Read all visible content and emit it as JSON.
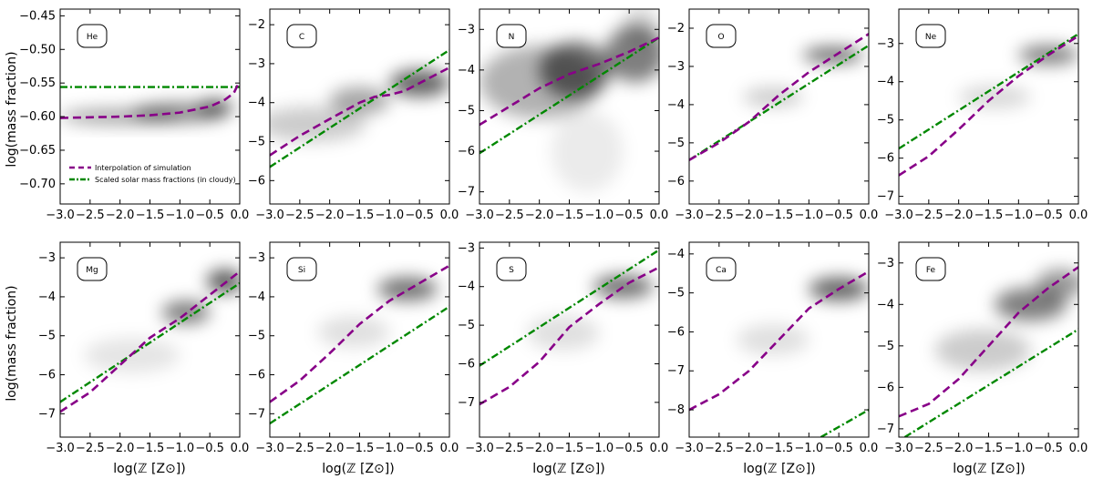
{
  "legend": {
    "interp_label": "Interpolation of simulation",
    "solar_label": "Scaled solar mass fractions (in cloudy)",
    "placement": "lower-left (He panel)"
  },
  "colors": {
    "interp": "#880088",
    "solar": "#008800",
    "density": "#000000"
  },
  "axes_text": {
    "ylabel": "log(mass fraction)",
    "xlabel": "log(ℤ [Z⊙])"
  },
  "chart_data": [
    {
      "type": "line",
      "element": "He",
      "xlim": [
        -3.0,
        0.0
      ],
      "ylim": [
        -0.73,
        -0.44
      ],
      "xticks": [
        -3.0,
        -2.5,
        -2.0,
        -1.5,
        -1.0,
        -0.5,
        0.0
      ],
      "yticks": [
        -0.7,
        -0.65,
        -0.6,
        -0.55,
        -0.5,
        -0.45
      ],
      "yticklabels": [
        "−0.70",
        "−0.65",
        "−0.60",
        "−0.55",
        "−0.50",
        "−0.45"
      ],
      "interp": [
        [
          -3.0,
          -0.602
        ],
        [
          -2.5,
          -0.601
        ],
        [
          -2.0,
          -0.6
        ],
        [
          -1.5,
          -0.598
        ],
        [
          -1.0,
          -0.594
        ],
        [
          -0.5,
          -0.585
        ],
        [
          -0.25,
          -0.575
        ],
        [
          -0.1,
          -0.565
        ],
        [
          0.0,
          -0.547
        ]
      ],
      "solar": [
        [
          -3.0,
          -0.556
        ],
        [
          0.0,
          -0.556
        ]
      ],
      "density": [
        [
          -2.0,
          -0.6,
          1.0,
          0.012,
          0.35
        ],
        [
          -1.0,
          -0.594,
          0.8,
          0.015,
          0.45
        ],
        [
          -0.4,
          -0.586,
          0.3,
          0.012,
          0.55
        ]
      ]
    },
    {
      "type": "line",
      "element": "C",
      "xlim": [
        -3.0,
        0.0
      ],
      "ylim": [
        -6.6,
        -1.6
      ],
      "xticks": [
        -3.0,
        -2.5,
        -2.0,
        -1.5,
        -1.0,
        -0.5,
        0.0
      ],
      "yticks": [
        -6,
        -5,
        -4,
        -3,
        -2
      ],
      "yticklabels": [
        "−6",
        "−5",
        "−4",
        "−3",
        "−2"
      ],
      "interp": [
        [
          -3.0,
          -5.35
        ],
        [
          -2.5,
          -4.85
        ],
        [
          -2.0,
          -4.42
        ],
        [
          -1.5,
          -4.0
        ],
        [
          -1.25,
          -3.85
        ],
        [
          -1.0,
          -3.8
        ],
        [
          -0.75,
          -3.7
        ],
        [
          -0.5,
          -3.5
        ],
        [
          -0.25,
          -3.3
        ],
        [
          0.0,
          -3.1
        ]
      ],
      "solar": [
        [
          -3.0,
          -5.65
        ],
        [
          0.0,
          -2.65
        ]
      ],
      "density": [
        [
          -2.3,
          -4.55,
          0.9,
          0.45,
          0.2
        ],
        [
          -1.5,
          -3.95,
          0.5,
          0.35,
          0.35
        ],
        [
          -0.5,
          -3.5,
          0.5,
          0.35,
          0.6
        ]
      ]
    },
    {
      "type": "line",
      "element": "N",
      "xlim": [
        -3.0,
        0.0
      ],
      "ylim": [
        -7.3,
        -2.5
      ],
      "xticks": [
        -3.0,
        -2.5,
        -2.0,
        -1.5,
        -1.0,
        -0.5,
        0.0
      ],
      "yticks": [
        -7,
        -6,
        -5,
        -4,
        -3
      ],
      "yticklabels": [
        "−7",
        "−6",
        "−5",
        "−4",
        "−3"
      ],
      "interp": [
        [
          -3.0,
          -5.35
        ],
        [
          -2.5,
          -4.9
        ],
        [
          -2.0,
          -4.45
        ],
        [
          -1.5,
          -4.1
        ],
        [
          -1.0,
          -3.85
        ],
        [
          -0.5,
          -3.55
        ],
        [
          0.0,
          -3.2
        ]
      ],
      "solar": [
        [
          -3.0,
          -6.05
        ],
        [
          0.0,
          -3.2
        ]
      ],
      "density": [
        [
          -2.0,
          -4.3,
          1.0,
          0.9,
          0.3
        ],
        [
          -1.4,
          -4.0,
          0.6,
          0.7,
          0.55
        ],
        [
          -0.4,
          -3.6,
          0.5,
          0.7,
          0.5
        ],
        [
          -1.2,
          -6.0,
          0.6,
          1.0,
          0.08
        ],
        [
          -0.3,
          -2.9,
          0.3,
          0.5,
          0.15
        ]
      ]
    },
    {
      "type": "line",
      "element": "O",
      "xlim": [
        -3.0,
        0.0
      ],
      "ylim": [
        -6.6,
        -1.5
      ],
      "xticks": [
        -3.0,
        -2.5,
        -2.0,
        -1.5,
        -1.0,
        -0.5,
        0.0
      ],
      "yticks": [
        -6,
        -5,
        -4,
        -3,
        -2
      ],
      "yticklabels": [
        "−6",
        "−5",
        "−4",
        "−3",
        "−2"
      ],
      "interp": [
        [
          -3.0,
          -5.45
        ],
        [
          -2.5,
          -5.0
        ],
        [
          -2.0,
          -4.45
        ],
        [
          -1.5,
          -3.75
        ],
        [
          -1.0,
          -3.15
        ],
        [
          -0.5,
          -2.65
        ],
        [
          0.0,
          -2.15
        ]
      ],
      "solar": [
        [
          -3.0,
          -5.45
        ],
        [
          0.0,
          -2.45
        ]
      ],
      "density": [
        [
          -1.6,
          -3.8,
          0.5,
          0.25,
          0.2
        ],
        [
          -0.6,
          -2.7,
          0.5,
          0.2,
          0.6
        ]
      ]
    },
    {
      "type": "line",
      "element": "Ne",
      "xlim": [
        -3.0,
        0.0
      ],
      "ylim": [
        -7.2,
        -2.1
      ],
      "xticks": [
        -3.0,
        -2.5,
        -2.0,
        -1.5,
        -1.0,
        -0.5,
        0.0
      ],
      "yticks": [
        -7,
        -6,
        -5,
        -4,
        -3
      ],
      "yticklabels": [
        "−7",
        "−6",
        "−5",
        "−4",
        "−3"
      ],
      "interp": [
        [
          -3.0,
          -6.45
        ],
        [
          -2.5,
          -5.95
        ],
        [
          -2.0,
          -5.25
        ],
        [
          -1.5,
          -4.5
        ],
        [
          -1.0,
          -3.85
        ],
        [
          -0.5,
          -3.3
        ],
        [
          0.0,
          -2.8
        ]
      ],
      "solar": [
        [
          -3.0,
          -5.75
        ],
        [
          0.0,
          -2.75
        ]
      ],
      "density": [
        [
          -1.4,
          -4.4,
          0.6,
          0.3,
          0.15
        ],
        [
          -0.5,
          -3.3,
          0.5,
          0.25,
          0.5
        ]
      ]
    },
    {
      "type": "line",
      "element": "Mg",
      "xlim": [
        -3.0,
        0.0
      ],
      "ylim": [
        -7.6,
        -2.6
      ],
      "xticks": [
        -3.0,
        -2.5,
        -2.0,
        -1.5,
        -1.0,
        -0.5,
        0.0
      ],
      "yticks": [
        -7,
        -6,
        -5,
        -4,
        -3
      ],
      "yticklabels": [
        "−7",
        "−6",
        "−5",
        "−4",
        "−3"
      ],
      "interp": [
        [
          -3.0,
          -6.95
        ],
        [
          -2.5,
          -6.45
        ],
        [
          -2.0,
          -5.75
        ],
        [
          -1.5,
          -5.05
        ],
        [
          -1.0,
          -4.55
        ],
        [
          -0.5,
          -3.95
        ],
        [
          0.0,
          -3.35
        ]
      ],
      "solar": [
        [
          -3.0,
          -6.7
        ],
        [
          0.0,
          -3.65
        ]
      ],
      "density": [
        [
          -1.8,
          -5.5,
          0.8,
          0.45,
          0.1
        ],
        [
          -0.9,
          -4.4,
          0.4,
          0.3,
          0.5
        ],
        [
          -0.25,
          -3.6,
          0.3,
          0.3,
          0.65
        ]
      ]
    },
    {
      "type": "line",
      "element": "Si",
      "xlim": [
        -3.0,
        0.0
      ],
      "ylim": [
        -7.6,
        -2.6
      ],
      "xticks": [
        -3.0,
        -2.5,
        -2.0,
        -1.5,
        -1.0,
        -0.5,
        0.0
      ],
      "yticks": [
        -7,
        -6,
        -5,
        -4,
        -3
      ],
      "yticklabels": [
        "−7",
        "−6",
        "−5",
        "−4",
        "−3"
      ],
      "interp": [
        [
          -3.0,
          -6.7
        ],
        [
          -2.5,
          -6.15
        ],
        [
          -2.0,
          -5.45
        ],
        [
          -1.5,
          -4.7
        ],
        [
          -1.0,
          -4.1
        ],
        [
          -0.5,
          -3.65
        ],
        [
          0.0,
          -3.2
        ]
      ],
      "solar": [
        [
          -3.0,
          -7.25
        ],
        [
          0.0,
          -4.25
        ]
      ],
      "density": [
        [
          -1.6,
          -4.9,
          0.6,
          0.4,
          0.12
        ],
        [
          -0.7,
          -3.8,
          0.5,
          0.3,
          0.55
        ]
      ]
    },
    {
      "type": "line",
      "element": "S",
      "xlim": [
        -3.0,
        0.0
      ],
      "ylim": [
        -7.9,
        -2.85
      ],
      "xticks": [
        -3.0,
        -2.5,
        -2.0,
        -1.5,
        -1.0,
        -0.5,
        0.0
      ],
      "yticks": [
        -7,
        -6,
        -5,
        -4,
        -3
      ],
      "yticklabels": [
        "−7",
        "−6",
        "−5",
        "−4",
        "−3"
      ],
      "interp": [
        [
          -3.0,
          -7.05
        ],
        [
          -2.5,
          -6.6
        ],
        [
          -2.0,
          -5.95
        ],
        [
          -1.5,
          -5.05
        ],
        [
          -1.0,
          -4.45
        ],
        [
          -0.5,
          -3.9
        ],
        [
          0.0,
          -3.5
        ]
      ],
      "solar": [
        [
          -3.0,
          -6.05
        ],
        [
          0.0,
          -3.05
        ]
      ],
      "density": [
        [
          -1.6,
          -5.2,
          0.6,
          0.45,
          0.12
        ],
        [
          -0.6,
          -4.0,
          0.5,
          0.3,
          0.55
        ]
      ]
    },
    {
      "type": "line",
      "element": "Ca",
      "xlim": [
        -3.0,
        0.0
      ],
      "ylim": [
        -8.7,
        -3.7
      ],
      "xticks": [
        -3.0,
        -2.5,
        -2.0,
        -1.5,
        -1.0,
        -0.5,
        0.0
      ],
      "yticks": [
        -8,
        -7,
        -6,
        -5,
        -4
      ],
      "yticklabels": [
        "−8",
        "−7",
        "−6",
        "−5",
        "−4"
      ],
      "interp": [
        [
          -3.0,
          -8.0
        ],
        [
          -2.5,
          -7.6
        ],
        [
          -2.0,
          -7.0
        ],
        [
          -1.5,
          -6.2
        ],
        [
          -1.0,
          -5.4
        ],
        [
          -0.5,
          -4.9
        ],
        [
          0.0,
          -4.45
        ]
      ],
      "solar": [
        [
          -0.8,
          -8.7
        ],
        [
          0.0,
          -8.0
        ]
      ],
      "density": [
        [
          -1.6,
          -6.2,
          0.6,
          0.4,
          0.12
        ],
        [
          -0.5,
          -4.9,
          0.5,
          0.3,
          0.6
        ]
      ]
    },
    {
      "type": "line",
      "element": "Fe",
      "xlim": [
        -3.0,
        0.0
      ],
      "ylim": [
        -7.2,
        -2.5
      ],
      "xticks": [
        -3.0,
        -2.5,
        -2.0,
        -1.5,
        -1.0,
        -0.5,
        0.0
      ],
      "yticks": [
        -7,
        -6,
        -5,
        -4,
        -3
      ],
      "yticklabels": [
        "−7",
        "−6",
        "−5",
        "−4",
        "−3"
      ],
      "interp": [
        [
          -3.0,
          -6.7
        ],
        [
          -2.5,
          -6.4
        ],
        [
          -2.0,
          -5.8
        ],
        [
          -1.5,
          -5.0
        ],
        [
          -1.0,
          -4.2
        ],
        [
          -0.5,
          -3.6
        ],
        [
          0.0,
          -3.1
        ]
      ],
      "solar": [
        [
          -2.9,
          -7.2
        ],
        [
          0.0,
          -4.6
        ]
      ],
      "density": [
        [
          -1.6,
          -5.1,
          0.8,
          0.5,
          0.2
        ],
        [
          -0.8,
          -4.0,
          0.6,
          0.4,
          0.5
        ],
        [
          -0.3,
          -3.5,
          0.4,
          0.35,
          0.4
        ]
      ]
    }
  ]
}
